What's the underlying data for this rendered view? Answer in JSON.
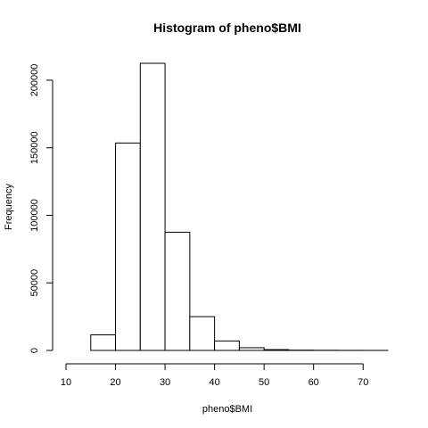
{
  "chart_data": {
    "type": "bar",
    "title": "Histogram of pheno$BMI",
    "xlabel": "pheno$BMI",
    "ylabel": "Frequency",
    "bins": [
      {
        "from": 10,
        "to": 15,
        "count": 0
      },
      {
        "from": 15,
        "to": 20,
        "count": 11500
      },
      {
        "from": 20,
        "to": 25,
        "count": 153500
      },
      {
        "from": 25,
        "to": 30,
        "count": 212500
      },
      {
        "from": 30,
        "to": 35,
        "count": 87500
      },
      {
        "from": 35,
        "to": 40,
        "count": 25000
      },
      {
        "from": 40,
        "to": 45,
        "count": 7000
      },
      {
        "from": 45,
        "to": 50,
        "count": 2000
      },
      {
        "from": 50,
        "to": 55,
        "count": 600
      },
      {
        "from": 55,
        "to": 60,
        "count": 200
      },
      {
        "from": 60,
        "to": 65,
        "count": 100
      },
      {
        "from": 65,
        "to": 70,
        "count": 50
      },
      {
        "from": 70,
        "to": 75,
        "count": 20
      }
    ],
    "xlim": [
      10,
      75
    ],
    "ylim": [
      0,
      212500
    ],
    "x_ticks": [
      10,
      20,
      30,
      40,
      50,
      60,
      70
    ],
    "y_ticks": [
      0,
      50000,
      100000,
      150000,
      200000
    ],
    "grid": false,
    "bar_fill": "#ffffff",
    "bar_stroke": "#000000"
  }
}
